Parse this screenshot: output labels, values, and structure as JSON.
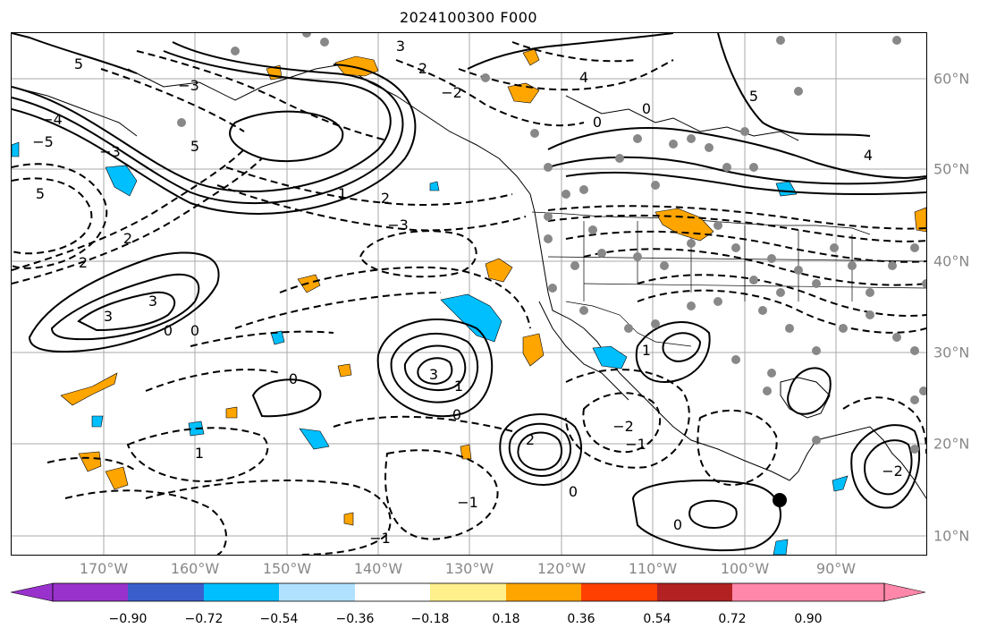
{
  "title": "2024100300 F000",
  "lon_labels": [
    "170°W",
    "160°W",
    "150°W",
    "140°W",
    "130°W",
    "120°W",
    "110°W",
    "100°W",
    "90°W"
  ],
  "lat_labels": [
    "60°N",
    "50°N",
    "40°N",
    "30°N",
    "20°N",
    "10°N"
  ],
  "colorbar": {
    "ticks": [
      "−0.90",
      "−0.72",
      "−0.54",
      "−0.36",
      "−0.18",
      "0.18",
      "0.36",
      "0.54",
      "0.72",
      "0.90"
    ],
    "colors": [
      "#9932cc",
      "#000080",
      "#3a5fcd",
      "#00bfff",
      "#b0e2ff",
      "#ffffff",
      "#fff08c",
      "#ffa500",
      "#ff4000",
      "#b22222",
      "#ff88aa"
    ]
  },
  "contour_labels": [
    "5",
    "5",
    "5",
    "5",
    "3",
    "3",
    "3",
    "3",
    "2",
    "2",
    "2",
    "2",
    "2",
    "1",
    "1",
    "1",
    "1",
    "0",
    "0",
    "0",
    "0",
    "0",
    "0",
    "0",
    "0",
    "−1",
    "−1",
    "−1",
    "−2",
    "−2",
    "−2",
    "−3",
    "−3",
    "−3",
    "−4",
    "−5",
    "4",
    "4"
  ],
  "legend_colors": {
    "orange": "#ffa500",
    "blue": "#00bfff",
    "station": "#888888"
  }
}
